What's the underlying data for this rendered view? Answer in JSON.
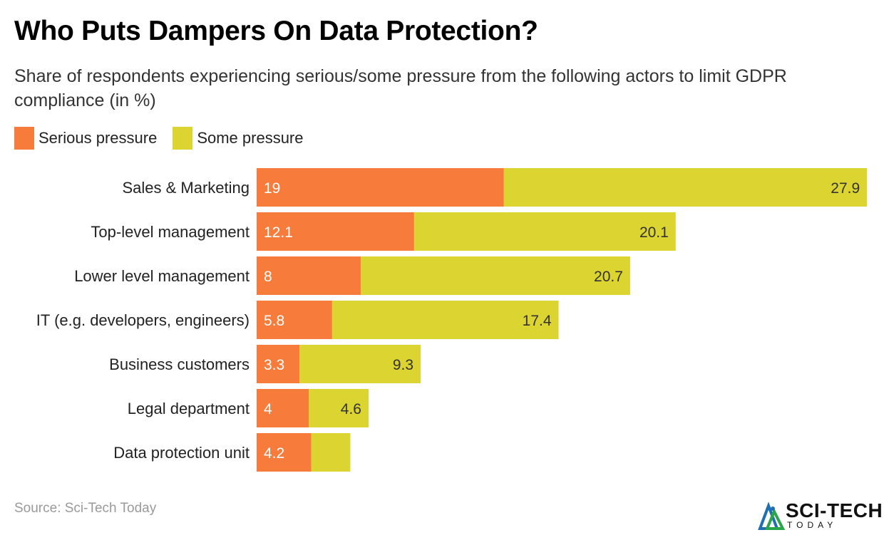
{
  "chart_data": {
    "type": "bar",
    "orientation": "horizontal",
    "stacked": true,
    "title": "Who Puts Dampers On Data Protection?",
    "subtitle": "Share of respondents experiencing serious/some pressure from the following actors to limit GDPR compliance (in %)",
    "categories": [
      "Sales & Marketing",
      "Top-level management",
      "Lower level management",
      "IT (e.g. developers, engineers)",
      "Business customers",
      "Legal department",
      "Data protection unit"
    ],
    "series": [
      {
        "name": "Serious pressure",
        "color": "#f77b3b",
        "values": [
          19,
          12.1,
          8,
          5.8,
          3.3,
          4,
          4.2
        ]
      },
      {
        "name": "Some pressure",
        "color": "#dcd431",
        "values": [
          27.9,
          20.1,
          20.7,
          17.4,
          9.3,
          4.6,
          3
        ]
      }
    ],
    "value_labels": {
      "serious": [
        "19",
        "12.1",
        "8",
        "5.8",
        "3.3",
        "4",
        "4.2"
      ],
      "some": [
        "27.9",
        "20.1",
        "20.7",
        "17.4",
        "9.3",
        "4.6",
        ""
      ]
    },
    "xlim": [
      0,
      47
    ],
    "grid": false,
    "legend_position": "top-left"
  },
  "source": "Source: Sci-Tech Today",
  "logo": {
    "name": "SCI-TECH",
    "tagline": "TODAY"
  }
}
